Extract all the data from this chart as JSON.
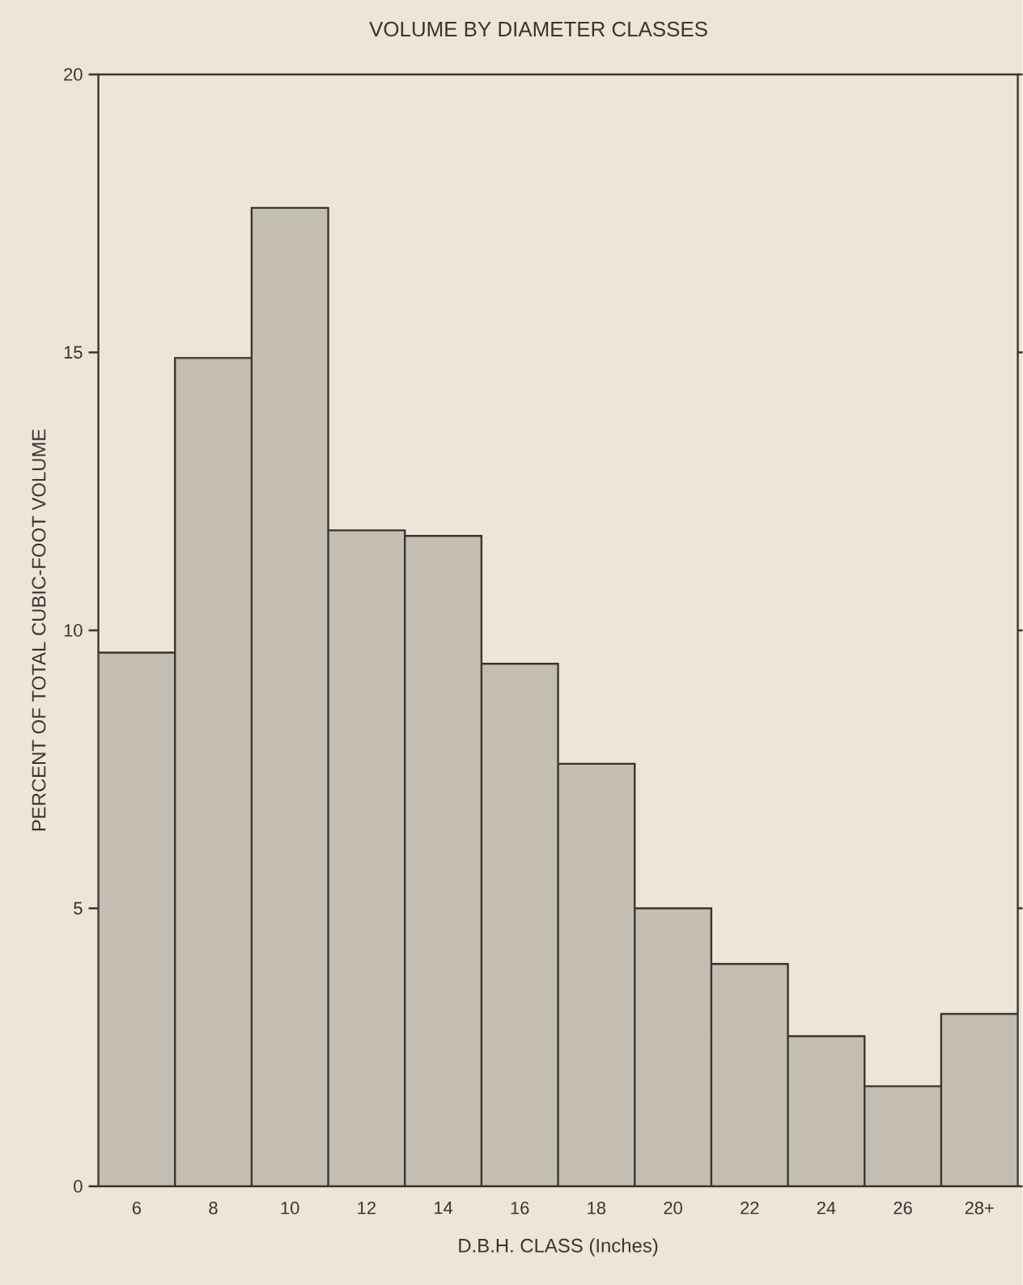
{
  "chart_data": {
    "type": "bar",
    "title": "VOLUME BY DIAMETER CLASSES",
    "xlabel": "D.B.H. CLASS (Inches)",
    "ylabel": "PERCENT OF TOTAL CUBIC-FOOT VOLUME",
    "categories": [
      "6",
      "8",
      "10",
      "12",
      "14",
      "16",
      "18",
      "20",
      "22",
      "24",
      "26",
      "28+"
    ],
    "values": [
      9.6,
      14.9,
      17.6,
      11.8,
      11.7,
      9.4,
      7.6,
      5.0,
      4.0,
      2.7,
      1.8,
      3.1
    ],
    "color": "#c4bdb1",
    "ylim": [
      0,
      20
    ],
    "yticks": [
      0,
      5,
      10,
      15,
      20
    ],
    "grid": false
  }
}
